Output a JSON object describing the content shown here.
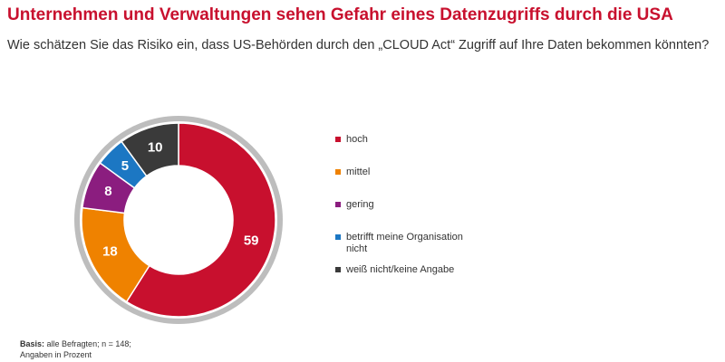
{
  "chart_data": {
    "type": "donut",
    "title": "Unternehmen und Verwaltungen sehen Gefahr eines Datenzugriffs durch die USA",
    "subtitle": "Wie schätzen Sie das Risiko ein, dass US-Behörden durch den „CLOUD Act“ Zugriff auf Ihre Daten bekommen könnten?",
    "categories": [
      "hoch",
      "mittel",
      "gering",
      "betrifft meine Organisation nicht",
      "weiß nicht/keine Angabe"
    ],
    "values": [
      59,
      18,
      8,
      5,
      10
    ],
    "colors": [
      "#c8102e",
      "#ef8200",
      "#8b1d7f",
      "#1c77c3",
      "#3a3a3a"
    ],
    "footnote": {
      "basis_label": "Basis:",
      "basis_text": "alle Befragten; n = 148;",
      "note": "Angaben in Prozent"
    }
  }
}
